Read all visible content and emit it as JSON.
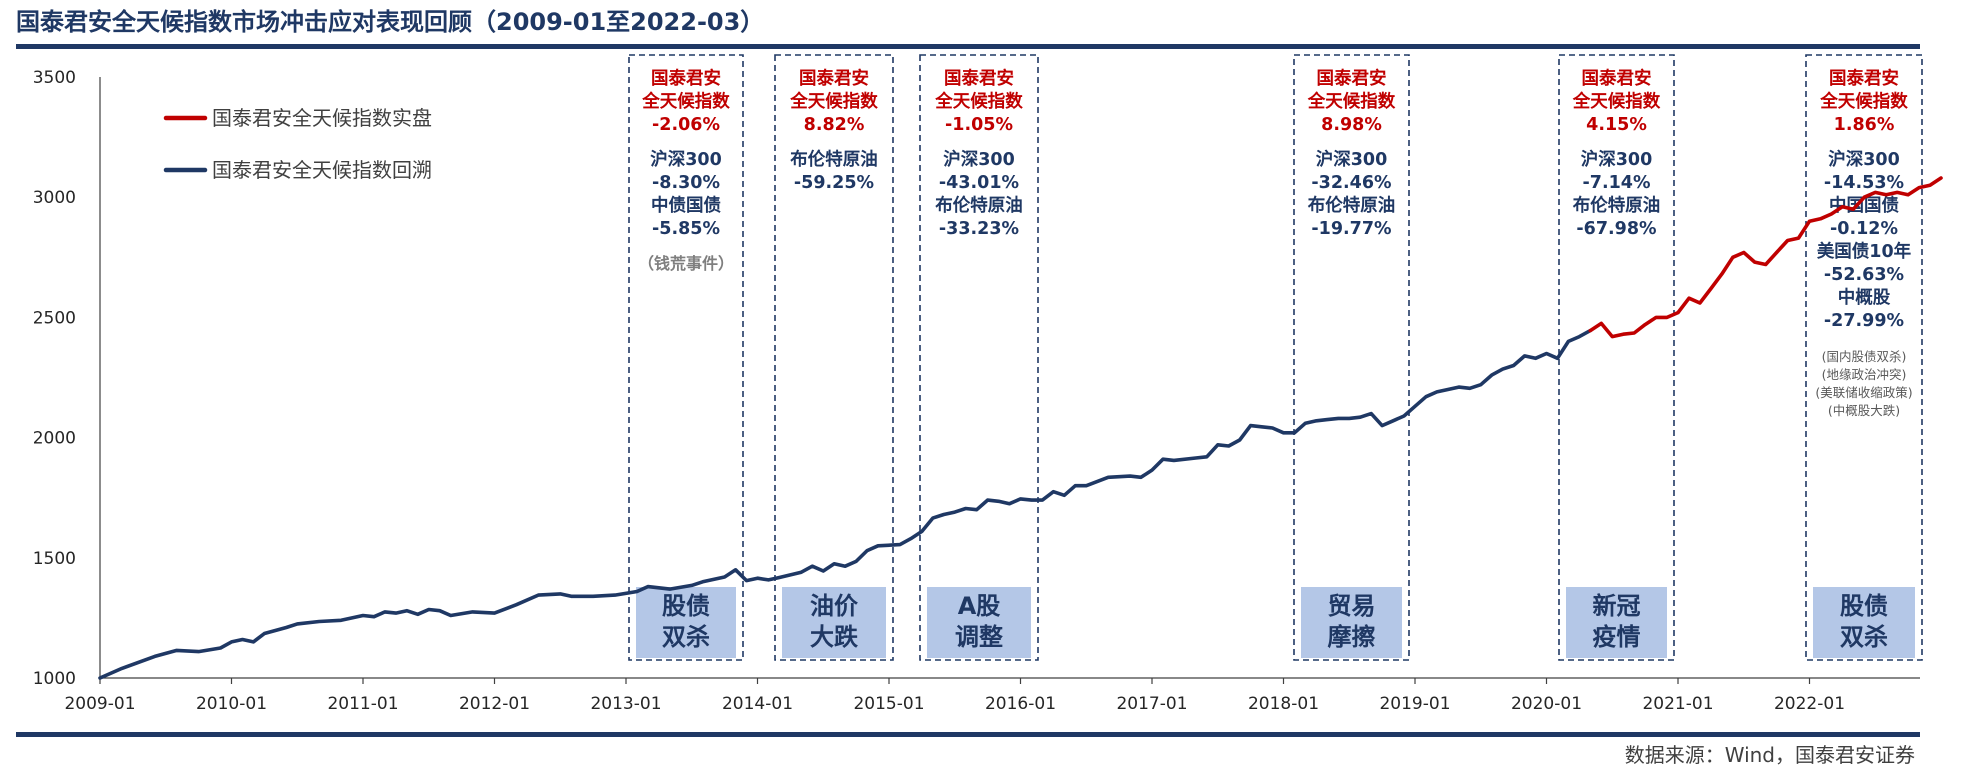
{
  "title": "国泰君安全天候指数市场冲击应对表现回顾（2009-01至2022-03）",
  "source": "数据来源：Wind，国泰君安证券",
  "colors": {
    "navy": "#1f3864",
    "red": "#c00000",
    "label_bg": "#b4c7e7",
    "gray": "#7f7f7f"
  },
  "chart_data": {
    "type": "line",
    "title": "国泰君安全天候指数市场冲击应对表现回顾（2009-01至2022-03）",
    "xlabel": "",
    "ylabel": "",
    "ylim": [
      1000,
      3500
    ],
    "yticks": [
      "1000",
      "1500",
      "2000",
      "2500",
      "3000",
      "3500"
    ],
    "xlim": [
      "2009-01",
      "2022-12"
    ],
    "xticks": [
      "2009-01",
      "2010-01",
      "2011-01",
      "2012-01",
      "2013-01",
      "2014-01",
      "2015-01",
      "2016-01",
      "2017-01",
      "2018-01",
      "2019-01",
      "2020-01",
      "2021-01",
      "2022-01"
    ],
    "grid": false,
    "legend_position": "top-left",
    "series": [
      {
        "name": "国泰君安全天候指数回溯",
        "color": "#1f3864",
        "points": [
          [
            "2009-01",
            1000
          ],
          [
            "2009-03",
            1040
          ],
          [
            "2009-06",
            1090
          ],
          [
            "2009-08",
            1115
          ],
          [
            "2009-10",
            1110
          ],
          [
            "2009-12",
            1125
          ],
          [
            "2010-01",
            1150
          ],
          [
            "2010-02",
            1160
          ],
          [
            "2010-03",
            1150
          ],
          [
            "2010-04",
            1185
          ],
          [
            "2010-06",
            1210
          ],
          [
            "2010-07",
            1225
          ],
          [
            "2010-09",
            1235
          ],
          [
            "2010-11",
            1240
          ],
          [
            "2011-01",
            1260
          ],
          [
            "2011-02",
            1255
          ],
          [
            "2011-03",
            1275
          ],
          [
            "2011-04",
            1270
          ],
          [
            "2011-05",
            1280
          ],
          [
            "2011-06",
            1265
          ],
          [
            "2011-07",
            1285
          ],
          [
            "2011-08",
            1280
          ],
          [
            "2011-09",
            1260
          ],
          [
            "2011-11",
            1275
          ],
          [
            "2012-01",
            1270
          ],
          [
            "2012-03",
            1305
          ],
          [
            "2012-05",
            1345
          ],
          [
            "2012-07",
            1350
          ],
          [
            "2012-08",
            1340
          ],
          [
            "2012-10",
            1340
          ],
          [
            "2012-12",
            1345
          ],
          [
            "2013-02",
            1360
          ],
          [
            "2013-03",
            1380
          ],
          [
            "2013-05",
            1370
          ],
          [
            "2013-07",
            1385
          ],
          [
            "2013-08",
            1400
          ],
          [
            "2013-10",
            1420
          ],
          [
            "2013-11",
            1450
          ],
          [
            "2013-12",
            1405
          ],
          [
            "2014-01",
            1415
          ],
          [
            "2014-02",
            1408
          ],
          [
            "2014-03",
            1418
          ],
          [
            "2014-05",
            1440
          ],
          [
            "2014-06",
            1465
          ],
          [
            "2014-07",
            1445
          ],
          [
            "2014-08",
            1475
          ],
          [
            "2014-09",
            1465
          ],
          [
            "2014-10",
            1485
          ],
          [
            "2014-11",
            1530
          ],
          [
            "2014-12",
            1550
          ],
          [
            "2015-02",
            1555
          ],
          [
            "2015-03",
            1580
          ],
          [
            "2015-04",
            1610
          ],
          [
            "2015-05",
            1665
          ],
          [
            "2015-06",
            1680
          ],
          [
            "2015-07",
            1690
          ],
          [
            "2015-08",
            1705
          ],
          [
            "2015-09",
            1700
          ],
          [
            "2015-10",
            1740
          ],
          [
            "2015-11",
            1735
          ],
          [
            "2015-12",
            1725
          ],
          [
            "2016-01",
            1745
          ],
          [
            "2016-02",
            1740
          ],
          [
            "2016-03",
            1740
          ],
          [
            "2016-04",
            1775
          ],
          [
            "2016-05",
            1760
          ],
          [
            "2016-06",
            1800
          ],
          [
            "2016-07",
            1800
          ],
          [
            "2016-09",
            1835
          ],
          [
            "2016-11",
            1840
          ],
          [
            "2016-12",
            1835
          ],
          [
            "2017-01",
            1865
          ],
          [
            "2017-02",
            1910
          ],
          [
            "2017-03",
            1905
          ],
          [
            "2017-05",
            1915
          ],
          [
            "2017-06",
            1920
          ],
          [
            "2017-07",
            1970
          ],
          [
            "2017-08",
            1965
          ],
          [
            "2017-09",
            1990
          ],
          [
            "2017-10",
            2050
          ],
          [
            "2017-11",
            2045
          ],
          [
            "2017-12",
            2040
          ],
          [
            "2018-01",
            2020
          ],
          [
            "2018-02",
            2020
          ],
          [
            "2018-03",
            2060
          ],
          [
            "2018-04",
            2070
          ],
          [
            "2018-05",
            2075
          ],
          [
            "2018-06",
            2080
          ],
          [
            "2018-07",
            2080
          ],
          [
            "2018-08",
            2085
          ],
          [
            "2018-09",
            2100
          ],
          [
            "2018-10",
            2050
          ],
          [
            "2018-11",
            2070
          ],
          [
            "2018-12",
            2090
          ],
          [
            "2019-01",
            2130
          ],
          [
            "2019-02",
            2170
          ],
          [
            "2019-03",
            2190
          ],
          [
            "2019-04",
            2200
          ],
          [
            "2019-05",
            2210
          ],
          [
            "2019-06",
            2205
          ],
          [
            "2019-07",
            2220
          ],
          [
            "2019-08",
            2260
          ],
          [
            "2019-09",
            2285
          ],
          [
            "2019-10",
            2300
          ],
          [
            "2019-11",
            2340
          ],
          [
            "2019-12",
            2330
          ],
          [
            "2020-01",
            2350
          ],
          [
            "2020-02",
            2330
          ],
          [
            "2020-03",
            2400
          ],
          [
            "2020-04",
            2420
          ],
          [
            "2020-05",
            2445
          ]
        ]
      },
      {
        "name": "国泰君安全天候指数实盘",
        "color": "#c00000",
        "points": [
          [
            "2020-05",
            2445
          ],
          [
            "2020-06",
            2475
          ],
          [
            "2020-07",
            2420
          ],
          [
            "2020-08",
            2430
          ],
          [
            "2020-09",
            2435
          ],
          [
            "2020-10",
            2470
          ],
          [
            "2020-11",
            2500
          ],
          [
            "2020-12",
            2500
          ],
          [
            "2021-01",
            2520
          ],
          [
            "2021-02",
            2580
          ],
          [
            "2021-03",
            2560
          ],
          [
            "2021-04",
            2620
          ],
          [
            "2021-05",
            2680
          ],
          [
            "2021-06",
            2750
          ],
          [
            "2021-07",
            2770
          ],
          [
            "2021-08",
            2730
          ],
          [
            "2021-09",
            2720
          ],
          [
            "2021-10",
            2770
          ],
          [
            "2021-11",
            2820
          ],
          [
            "2021-12",
            2830
          ],
          [
            "2022-01",
            2900
          ],
          [
            "2022-02",
            2910
          ],
          [
            "2022-03",
            2930
          ],
          [
            "2022-04",
            2960
          ],
          [
            "2022-05",
            2950
          ],
          [
            "2022-06",
            3000
          ],
          [
            "2022-07",
            3020
          ],
          [
            "2022-08",
            3010
          ],
          [
            "2022-09",
            3020
          ],
          [
            "2022-10",
            3010
          ],
          [
            "2022-11",
            3040
          ],
          [
            "2022-12",
            3050
          ],
          [
            "2023-01",
            3080
          ]
        ]
      }
    ]
  },
  "events": [
    {
      "label_line1": "股债",
      "label_line2": "双杀",
      "lines": [
        {
          "text": "国泰君安",
          "style": "red"
        },
        {
          "text": "全天候指数",
          "style": "red"
        },
        {
          "text": "-2.06%",
          "style": "red"
        },
        {
          "text": "",
          "style": "blue"
        },
        {
          "text": "沪深300",
          "style": "blue"
        },
        {
          "text": "-8.30%",
          "style": "blue"
        },
        {
          "text": "中债国债",
          "style": "blue"
        },
        {
          "text": "-5.85%",
          "style": "blue"
        },
        {
          "text": "",
          "style": "blue"
        },
        {
          "text": "（钱荒事件）",
          "style": "gray"
        }
      ]
    },
    {
      "label_line1": "油价",
      "label_line2": "大跌",
      "lines": [
        {
          "text": "国泰君安",
          "style": "red"
        },
        {
          "text": "全天候指数",
          "style": "red"
        },
        {
          "text": "8.82%",
          "style": "red"
        },
        {
          "text": "",
          "style": "blue"
        },
        {
          "text": "布伦特原油",
          "style": "blue"
        },
        {
          "text": "-59.25%",
          "style": "blue"
        }
      ]
    },
    {
      "label_line1": "A股",
      "label_line2": "调整",
      "lines": [
        {
          "text": "国泰君安",
          "style": "red"
        },
        {
          "text": "全天候指数",
          "style": "red"
        },
        {
          "text": "-1.05%",
          "style": "red"
        },
        {
          "text": "",
          "style": "blue"
        },
        {
          "text": "沪深300",
          "style": "blue"
        },
        {
          "text": "-43.01%",
          "style": "blue"
        },
        {
          "text": "布伦特原油",
          "style": "blue"
        },
        {
          "text": "-33.23%",
          "style": "blue"
        }
      ]
    },
    {
      "label_line1": "贸易",
      "label_line2": "摩擦",
      "lines": [
        {
          "text": "国泰君安",
          "style": "red"
        },
        {
          "text": "全天候指数",
          "style": "red"
        },
        {
          "text": "8.98%",
          "style": "red"
        },
        {
          "text": "",
          "style": "blue"
        },
        {
          "text": "沪深300",
          "style": "blue"
        },
        {
          "text": "-32.46%",
          "style": "blue"
        },
        {
          "text": "布伦特原油",
          "style": "blue"
        },
        {
          "text": "-19.77%",
          "style": "blue"
        }
      ]
    },
    {
      "label_line1": "新冠",
      "label_line2": "疫情",
      "lines": [
        {
          "text": "国泰君安",
          "style": "red"
        },
        {
          "text": "全天候指数",
          "style": "red"
        },
        {
          "text": "4.15%",
          "style": "red"
        },
        {
          "text": "",
          "style": "blue"
        },
        {
          "text": "沪深300",
          "style": "blue"
        },
        {
          "text": "-7.14%",
          "style": "blue"
        },
        {
          "text": "布伦特原油",
          "style": "blue"
        },
        {
          "text": "-67.98%",
          "style": "blue"
        }
      ]
    },
    {
      "label_line1": "股债",
      "label_line2": "双杀",
      "lines": [
        {
          "text": "国泰君安",
          "style": "red"
        },
        {
          "text": "全天候指数",
          "style": "red"
        },
        {
          "text": "1.86%",
          "style": "red"
        },
        {
          "text": "",
          "style": "blue"
        },
        {
          "text": "沪深300",
          "style": "blue"
        },
        {
          "text": "-14.53%",
          "style": "blue"
        },
        {
          "text": "中国国债",
          "style": "blue"
        },
        {
          "text": "-0.12%",
          "style": "blue"
        },
        {
          "text": "美国债10年",
          "style": "blue"
        },
        {
          "text": "-52.63%",
          "style": "blue"
        },
        {
          "text": "中概股",
          "style": "blue"
        },
        {
          "text": "-27.99%",
          "style": "blue"
        },
        {
          "text": "",
          "style": "blue"
        },
        {
          "text": "(国内股债双杀)",
          "style": "small"
        },
        {
          "text": "(地缘政治冲突)",
          "style": "small"
        },
        {
          "text": "(美联储收缩政策)",
          "style": "small"
        },
        {
          "text": "(中概股大跌)",
          "style": "small"
        }
      ]
    }
  ]
}
